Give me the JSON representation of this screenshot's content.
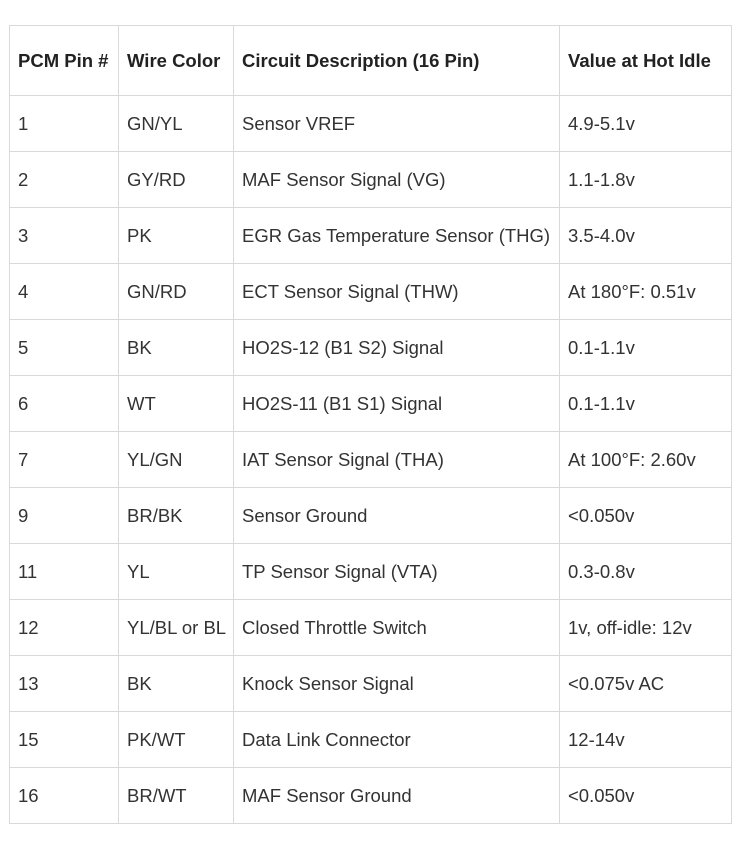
{
  "table": {
    "headers": [
      "PCM Pin #",
      "Wire Color",
      "Circuit Description (16 Pin)",
      "Value at Hot Idle"
    ],
    "rows": [
      [
        "1",
        "GN/YL",
        "Sensor VREF",
        "4.9-5.1v"
      ],
      [
        "2",
        "GY/RD",
        "MAF Sensor Signal (VG)",
        "1.1-1.8v"
      ],
      [
        "3",
        "PK",
        "EGR Gas Temperature Sensor (THG)",
        "3.5-4.0v"
      ],
      [
        "4",
        "GN/RD",
        "ECT Sensor Signal (THW)",
        "At 180°F: 0.51v"
      ],
      [
        "5",
        "BK",
        "HO2S-12 (B1 S2) Signal",
        "0.1-1.1v"
      ],
      [
        "6",
        "WT",
        "HO2S-11 (B1 S1) Signal",
        "0.1-1.1v"
      ],
      [
        "7",
        "YL/GN",
        "IAT Sensor Signal (THA)",
        "At 100°F: 2.60v"
      ],
      [
        "9",
        "BR/BK",
        "Sensor Ground",
        "<0.050v"
      ],
      [
        "11",
        "YL",
        "TP Sensor Signal (VTA)",
        "0.3-0.8v"
      ],
      [
        "12",
        "YL/BL or BL",
        "Closed Throttle Switch",
        "1v, off-idle: 12v"
      ],
      [
        "13",
        "BK",
        "Knock Sensor Signal",
        "<0.075v AC"
      ],
      [
        "15",
        "PK/WT",
        "Data Link Connector",
        "12-14v"
      ],
      [
        "16",
        "BR/WT",
        "MAF Sensor Ground",
        "<0.050v"
      ]
    ]
  }
}
